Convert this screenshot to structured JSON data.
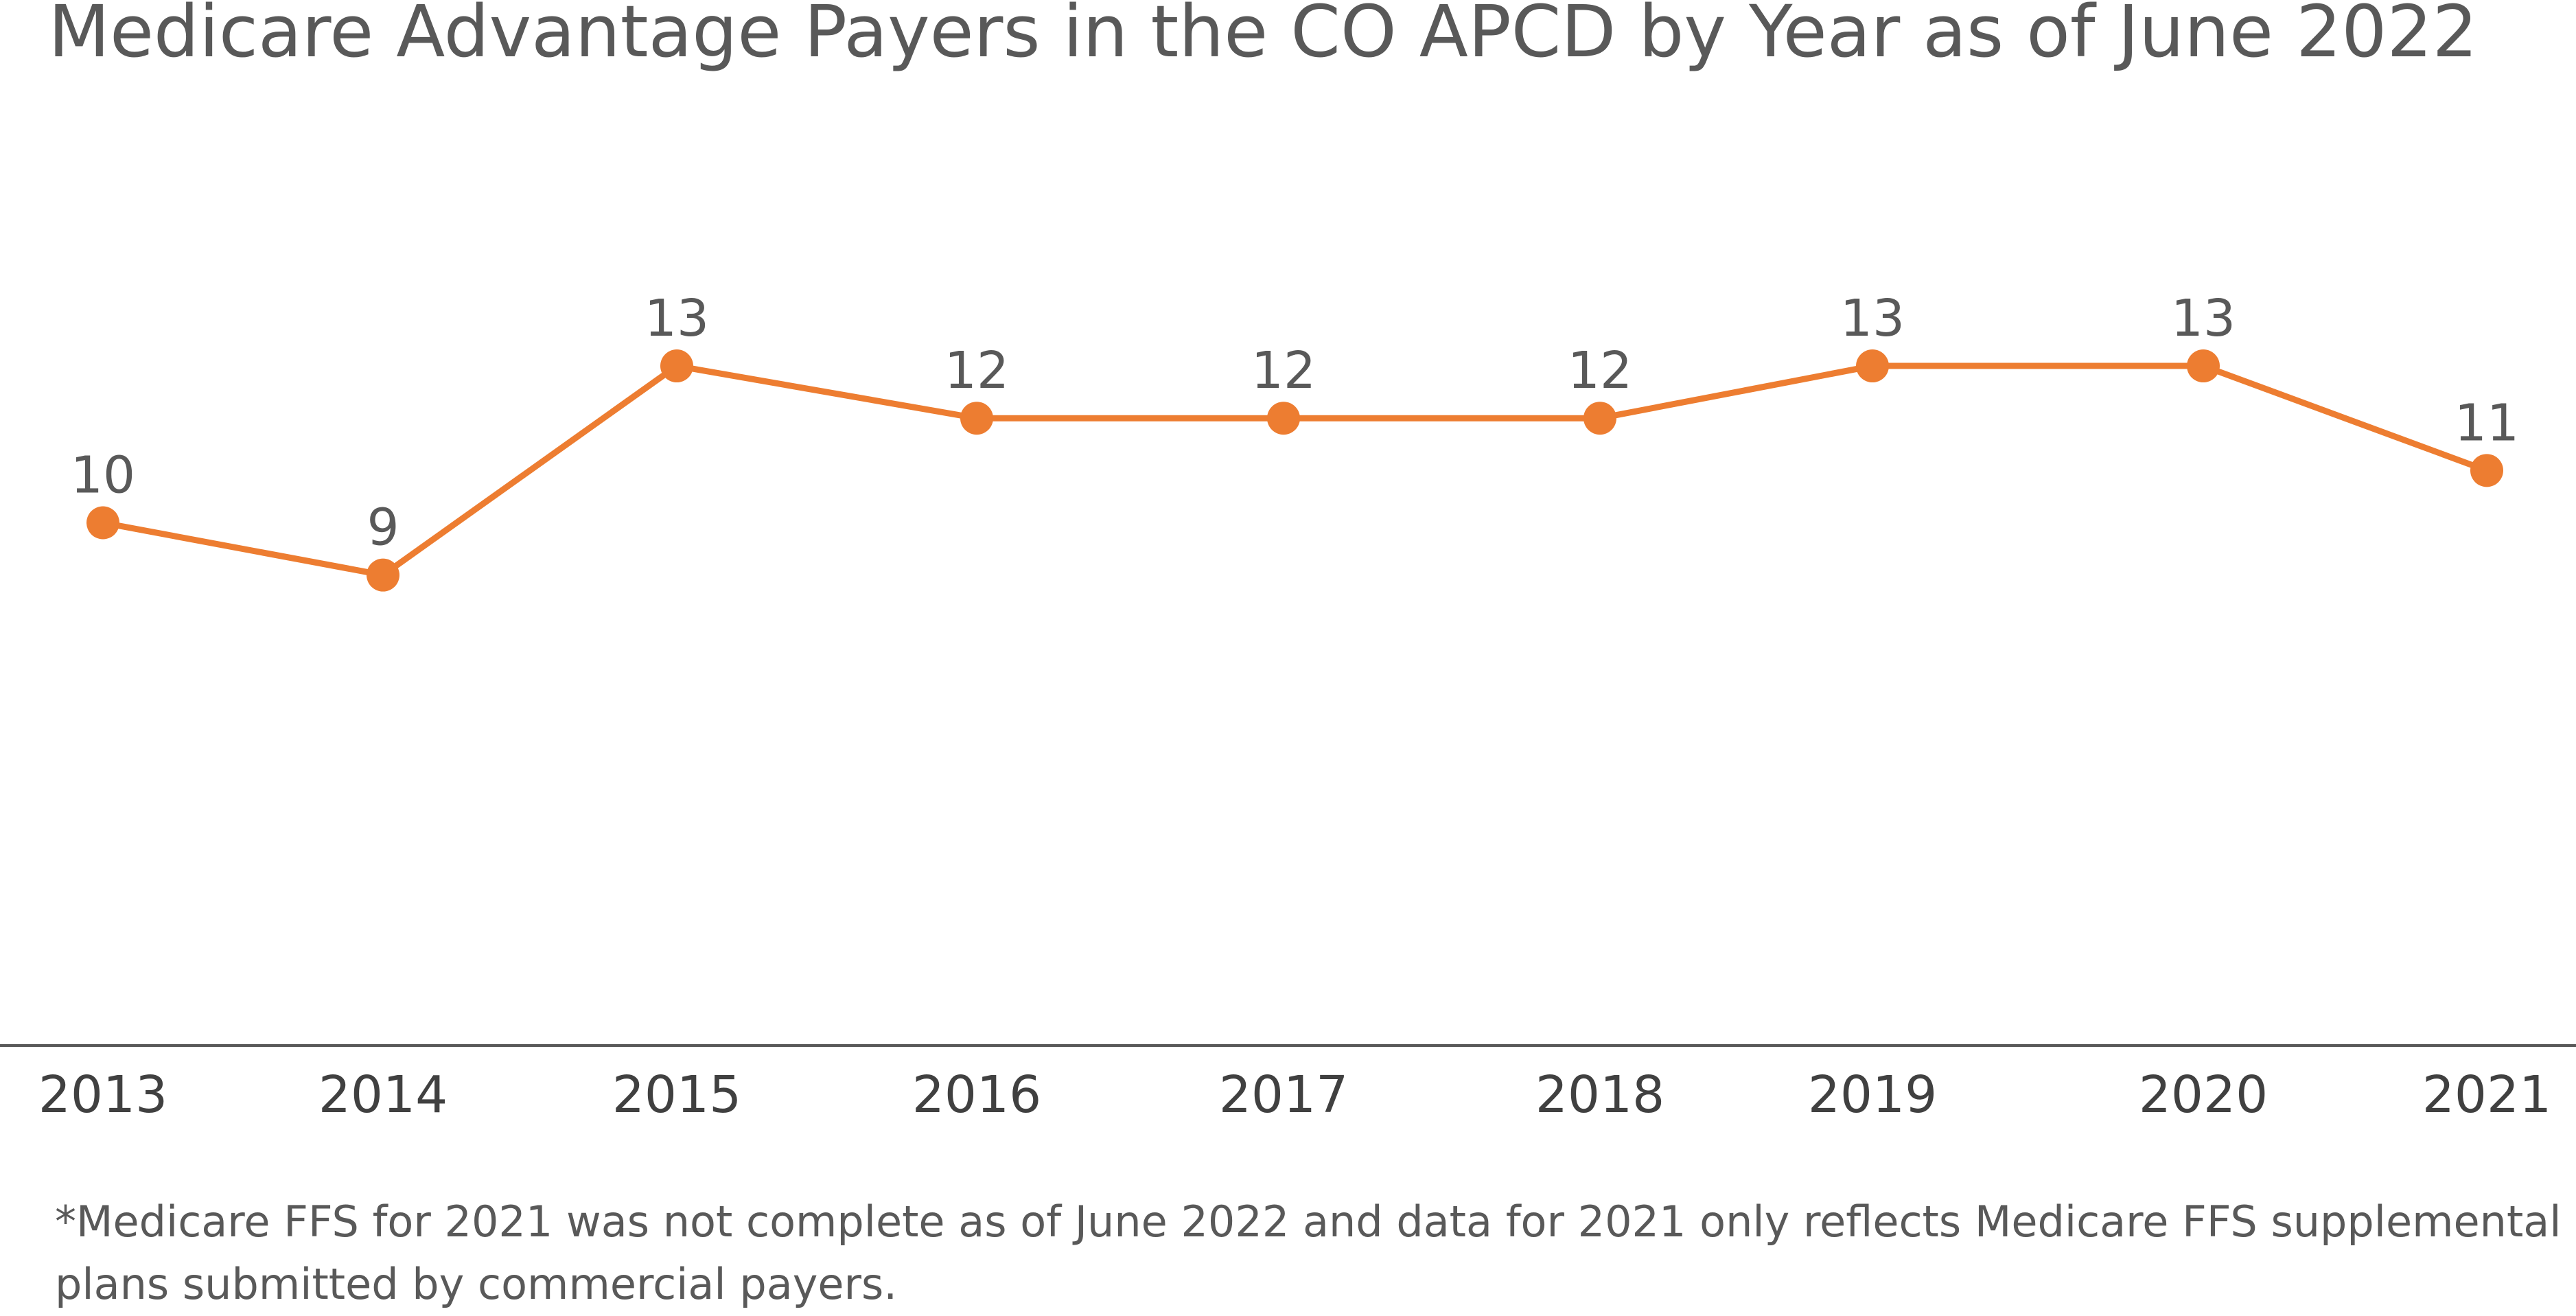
{
  "chart_data": {
    "type": "line",
    "title": "Medicare Advantage Payers in the CO APCD by Year as of June 2022",
    "xlabel": "",
    "ylabel": "",
    "categories": [
      "2013",
      "2014",
      "2015",
      "2016",
      "2017",
      "2018",
      "2019",
      "2020",
      "2021"
    ],
    "series": [
      {
        "values": [
          10,
          9,
          13,
          12,
          12,
          12,
          13,
          13,
          11
        ]
      }
    ],
    "data_labels": [
      "10",
      "9",
      "13",
      "12",
      "12",
      "12",
      "13",
      "13",
      "11"
    ],
    "ylim": [
      0,
      20
    ],
    "grid": false,
    "legend": "none",
    "colors": {
      "series": "#ED7D31",
      "axis": "#595959",
      "text": "#595959"
    }
  },
  "footnote": {
    "line1": "*Medicare FFS for 2021 was not complete as of June 2022 and data for 2021 only reflects Medicare FFS supplemental",
    "line2": "plans submitted by commercial payers."
  }
}
